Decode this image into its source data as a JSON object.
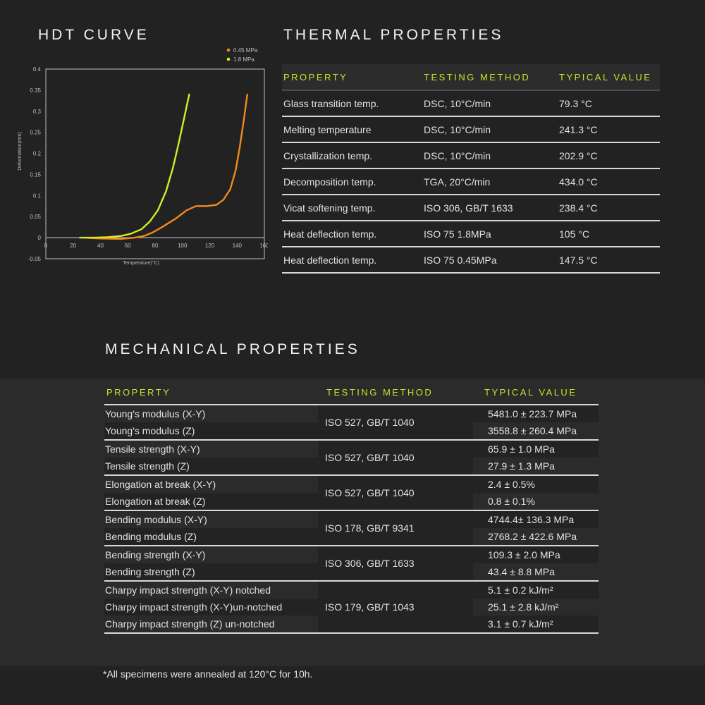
{
  "hdt": {
    "title": "HDT CURVE",
    "chart_data": {
      "type": "line",
      "xlabel": "Temperature(°C)",
      "ylabel": "Deformation(mm)",
      "xlim": [
        0,
        160
      ],
      "ylim": [
        -0.05,
        0.4
      ],
      "x_ticks": [
        "0",
        "20",
        "40",
        "60",
        "80",
        "100",
        "120",
        "140",
        "160"
      ],
      "y_ticks": [
        "-0.05",
        "0",
        "0.05",
        "0.1",
        "0.15",
        "0.2",
        "0.25",
        "0.3",
        "0.35",
        "0.4"
      ],
      "legend_position": "top-right",
      "series": [
        {
          "name": "0.45 MPa",
          "color": "#f08a1c",
          "x": [
            28,
            40,
            55,
            65,
            72,
            78,
            85,
            95,
            103,
            110,
            118,
            125,
            130,
            135,
            139,
            142,
            145,
            147.5
          ],
          "y": [
            0,
            -0.002,
            -0.003,
            0.0,
            0.004,
            0.012,
            0.025,
            0.045,
            0.065,
            0.075,
            0.075,
            0.078,
            0.09,
            0.115,
            0.16,
            0.215,
            0.28,
            0.34
          ]
        },
        {
          "name": "1.8 MPa",
          "color": "#cdef2a",
          "x": [
            25,
            35,
            45,
            55,
            62,
            70,
            76,
            82,
            88,
            93,
            97,
            101,
            105
          ],
          "y": [
            0,
            0.0,
            0.001,
            0.004,
            0.009,
            0.02,
            0.038,
            0.065,
            0.11,
            0.165,
            0.22,
            0.28,
            0.34
          ]
        }
      ]
    }
  },
  "thermal": {
    "title": "THERMAL PROPERTIES",
    "headers": [
      "PROPERTY",
      "TESTING METHOD",
      "TYPICAL VALUE"
    ],
    "rows": [
      [
        "Glass transition temp.",
        "DSC, 10°C/min",
        "79.3 °C"
      ],
      [
        "Melting temperature",
        "DSC, 10°C/min",
        "241.3 °C"
      ],
      [
        "Crystallization temp.",
        "DSC, 10°C/min",
        "202.9 °C"
      ],
      [
        "Decomposition temp.",
        "TGA, 20°C/min",
        "434.0 °C"
      ],
      [
        "Vicat softening temp.",
        "ISO 306, GB/T 1633",
        "238.4 °C"
      ],
      [
        "Heat deflection temp.",
        "ISO 75 1.8MPa",
        "105 °C"
      ],
      [
        "Heat deflection temp.",
        "ISO 75 0.45MPa",
        "147.5 °C"
      ]
    ]
  },
  "mechanical": {
    "title": "MECHANICAL PROPERTIES",
    "headers": [
      "PROPERTY",
      "TESTING METHOD",
      "TYPICAL VALUE"
    ],
    "groups": [
      {
        "method": "ISO 527, GB/T 1040",
        "props": [
          "Young's modulus (X-Y)",
          "Young's modulus (Z)"
        ],
        "values": [
          "5481.0 ± 223.7 MPa",
          "3558.8 ± 260.4 MPa"
        ]
      },
      {
        "method": "ISO 527, GB/T 1040",
        "props": [
          "Tensile strength (X-Y)",
          "Tensile strength (Z)"
        ],
        "values": [
          "65.9 ± 1.0 MPa",
          "27.9 ± 1.3 MPa"
        ]
      },
      {
        "method": "ISO 527, GB/T 1040",
        "props": [
          "Elongation at break (X-Y)",
          "Elongation at break (Z)"
        ],
        "values": [
          "2.4 ±  0.5%",
          "0.8 ±  0.1%"
        ]
      },
      {
        "method": "ISO 178, GB/T 9341",
        "props": [
          "Bending modulus (X-Y)",
          "Bending modulus (Z)"
        ],
        "values": [
          "4744.4± 136.3 MPa",
          "2768.2 ± 422.6 MPa"
        ]
      },
      {
        "method": "ISO 306, GB/T 1633",
        "props": [
          "Bending strength (X-Y)",
          "Bending strength (Z)"
        ],
        "values": [
          "109.3 ± 2.0 MPa",
          "43.4 ± 8.8 MPa"
        ]
      },
      {
        "method": "ISO 179,  GB/T 1043",
        "props": [
          "Charpy impact strength (X-Y) notched",
          "Charpy impact strength (X-Y)un-notched",
          "Charpy impact strength (Z) un-notched"
        ],
        "values": [
          "5.1  ± 0.2 kJ/m²",
          "25.1  ± 2.8 kJ/m²",
          "3.1  ± 0.7 kJ/m²"
        ]
      }
    ]
  },
  "footnote": "*All specimens were annealed at 120°C for 10h."
}
